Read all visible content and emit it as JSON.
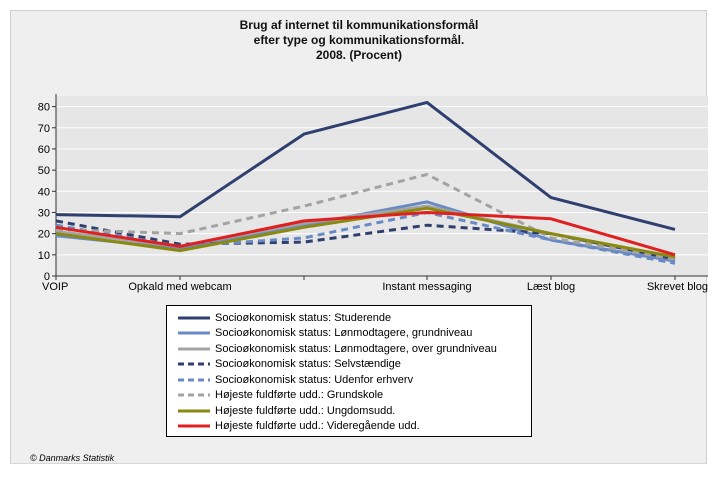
{
  "chart_data": {
    "type": "line",
    "title": "Brug af internet til kommunikationsformål",
    "subtitle_lines": [
      "efter type og kommunikationsformål.",
      "2008. (Procent)"
    ],
    "x": [
      "VOIP",
      "Opkald med webcam",
      "",
      "Instant messaging",
      "Læst blog",
      "Skrevet blog"
    ],
    "ylim": [
      0,
      85
    ],
    "yticks": [
      0,
      10,
      20,
      30,
      40,
      50,
      60,
      70,
      80
    ],
    "grid": "horizontal",
    "legend_placement": "bottom",
    "series": [
      {
        "name": "Socioøkonomisk status: Studerende",
        "color": "#2f3f6f",
        "dash": "solid",
        "values": [
          29,
          28,
          67,
          82,
          37,
          22
        ]
      },
      {
        "name": "Socioøkonomisk status: Lønmodtagere, grundniveau",
        "color": "#6a8ac6",
        "dash": "solid",
        "values": [
          19,
          13,
          24,
          35,
          17,
          7
        ]
      },
      {
        "name": "Socioøkonomisk status: Lønmodtagere, over grundniveau",
        "color": "#a3a3a3",
        "dash": "solid",
        "values": [
          21,
          14,
          25,
          33,
          20,
          8
        ]
      },
      {
        "name": "Socioøkonomisk status: Selvstændige",
        "color": "#2f3f6f",
        "dash": "dashed",
        "values": [
          26,
          15,
          16,
          24,
          20,
          8
        ]
      },
      {
        "name": "Socioøkonomisk status: Udenfor erhverv",
        "color": "#6a8ac6",
        "dash": "dashed",
        "values": [
          24,
          14,
          18,
          30,
          17,
          6
        ]
      },
      {
        "name": "Højeste fuldførte udd.: Grundskole",
        "color": "#a3a3a3",
        "dash": "dashed",
        "values": [
          22,
          20,
          33,
          48,
          18,
          8
        ]
      },
      {
        "name": "Højeste fuldførte udd.: Ungdomsudd.",
        "color": "#8a8a10",
        "dash": "solid",
        "values": [
          20,
          12,
          23,
          32,
          20,
          9
        ]
      },
      {
        "name": "Højeste fuldførte udd.: Videregående udd.",
        "color": "#e02020",
        "dash": "solid",
        "values": [
          23,
          14,
          26,
          30,
          27,
          10
        ]
      }
    ]
  },
  "copyright": "© Danmarks Statistik"
}
